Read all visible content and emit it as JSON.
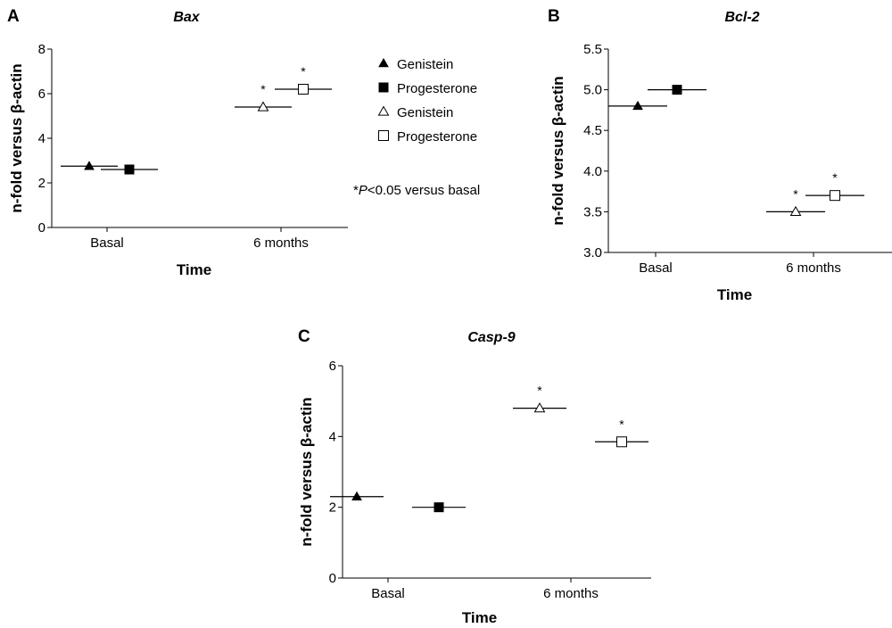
{
  "chart_data": [
    {
      "panel": "A",
      "type": "scatter",
      "title": "Bax",
      "ylabel": "n-fold versus β-actin",
      "xlabel": "Time",
      "categories": [
        "Basal",
        "6 months"
      ],
      "yticks": [
        "0",
        "2",
        "4",
        "6",
        "8"
      ],
      "ylim": [
        0,
        8
      ],
      "points": [
        {
          "series": "Genistein",
          "category": "Basal",
          "value": 2.75,
          "marker": "filled-triangle",
          "star": ""
        },
        {
          "series": "Progesterone",
          "category": "Basal",
          "value": 2.6,
          "marker": "filled-square",
          "star": ""
        },
        {
          "series": "Genistein",
          "category": "6 months",
          "value": 5.4,
          "marker": "open-triangle",
          "star": "*"
        },
        {
          "series": "Progesterone",
          "category": "6 months",
          "value": 6.2,
          "marker": "open-square",
          "star": "*"
        }
      ]
    },
    {
      "panel": "B",
      "type": "scatter",
      "title": "Bcl-2",
      "ylabel": "n-fold versus β-actin",
      "xlabel": "Time",
      "categories": [
        "Basal",
        "6 months"
      ],
      "yticks": [
        "3.0",
        "3.5",
        "4.0",
        "4.5",
        "5.0",
        "5.5"
      ],
      "ylim": [
        3.0,
        5.5
      ],
      "points": [
        {
          "series": "Genistein",
          "category": "Basal",
          "value": 4.8,
          "marker": "filled-triangle",
          "star": ""
        },
        {
          "series": "Progesterone",
          "category": "Basal",
          "value": 5.0,
          "marker": "filled-square",
          "star": ""
        },
        {
          "series": "Genistein",
          "category": "6 months",
          "value": 3.5,
          "marker": "open-triangle",
          "star": "*"
        },
        {
          "series": "Progesterone",
          "category": "6 months",
          "value": 3.7,
          "marker": "open-square",
          "star": "*"
        }
      ]
    },
    {
      "panel": "C",
      "type": "scatter",
      "title": "Casp-9",
      "ylabel": "n-fold versus β-actin",
      "xlabel": "Time",
      "categories": [
        "Basal",
        "6 months"
      ],
      "yticks": [
        "0",
        "2",
        "4",
        "6"
      ],
      "ylim": [
        0,
        6
      ],
      "points": [
        {
          "series": "Genistein",
          "category": "Basal",
          "value": 2.3,
          "marker": "filled-triangle",
          "star": ""
        },
        {
          "series": "Progesterone",
          "category": "Basal",
          "value": 2.0,
          "marker": "filled-square",
          "star": ""
        },
        {
          "series": "Genistein",
          "category": "6 months",
          "value": 4.8,
          "marker": "open-triangle",
          "star": "*"
        },
        {
          "series": "Progesterone",
          "category": "6 months",
          "value": 3.85,
          "marker": "open-square",
          "star": "*"
        }
      ]
    }
  ],
  "legend": {
    "items": [
      {
        "label": "Genistein",
        "marker": "filled-triangle"
      },
      {
        "label": "Progesterone",
        "marker": "filled-square"
      },
      {
        "label": "Genistein",
        "marker": "open-triangle"
      },
      {
        "label": "Progesterone",
        "marker": "open-square"
      }
    ],
    "footnote": {
      "star": "*",
      "p": "P",
      "rest": "<0.05 versus basal"
    }
  }
}
